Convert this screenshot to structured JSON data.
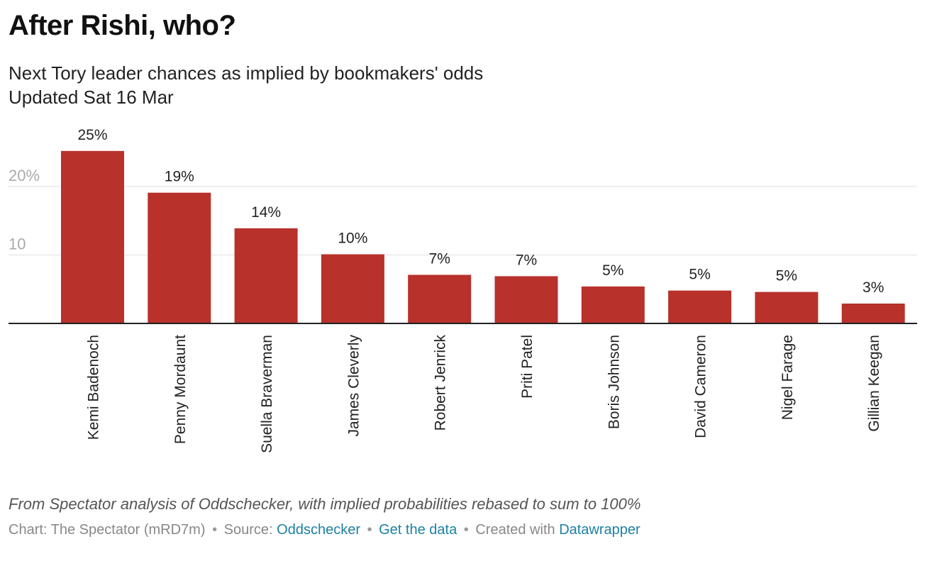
{
  "header": {
    "title": "After Rishi, who?",
    "subtitle_line1": "Next Tory leader chances as implied by bookmakers' odds",
    "subtitle_line2": "Updated Sat 16 Mar"
  },
  "footer": {
    "notes": "From Spectator analysis of Oddschecker, with implied probabilities rebased to sum to 100%",
    "chart_credit": "Chart: The Spectator (mRD7m)",
    "source_label": "Source:",
    "source_link": "Oddschecker",
    "data_link": "Get the data",
    "created_label": "Created with",
    "created_link": "Datawrapper",
    "separator": "•"
  },
  "colors": {
    "bar": "#b8312b",
    "gridline": "#e0e0e0",
    "axis": "#222222",
    "tick_label": "#aaaaaa",
    "link": "#1d81a2"
  },
  "chart_data": {
    "type": "bar",
    "title": "After Rishi, who?",
    "categories": [
      "Kemi Badenoch",
      "Penny Mordaunt",
      "Suella Braverman",
      "James Cleverly",
      "Robert Jenrick",
      "Priti Patel",
      "Boris Johnson",
      "David Cameron",
      "Nigel Farage",
      "Gillian Keegan"
    ],
    "values": [
      25.2,
      19.1,
      13.9,
      10.1,
      7.1,
      6.9,
      5.4,
      4.8,
      4.6,
      2.9
    ],
    "data_labels": [
      "25%",
      "19%",
      "14%",
      "10%",
      "7%",
      "7%",
      "5%",
      "5%",
      "5%",
      "3%"
    ],
    "ylim": [
      0,
      27
    ],
    "yticks": [
      10,
      20
    ],
    "ytick_labels": [
      "10",
      "20%"
    ],
    "grid": true,
    "legend": "none"
  }
}
